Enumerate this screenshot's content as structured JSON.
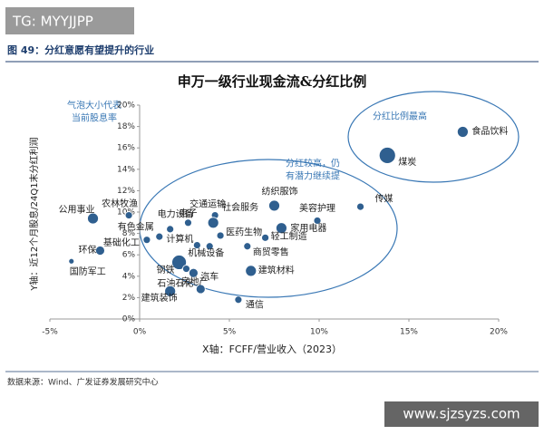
{
  "header": {
    "watermark": "TG: MYYJJPP",
    "figure_title": "图 49：分红意愿有望提升的行业"
  },
  "chart_data": {
    "type": "bubble",
    "title": "申万一级行业现金流&分红比例",
    "x_label": "X轴：FCFF/营业收入（2023）",
    "y_label": "Y轴：近12个月股息/24Q1末分红利润",
    "xlim": [
      -5,
      20
    ],
    "ylim": [
      0,
      20
    ],
    "xticks": [
      {
        "value": -5,
        "label": "-5%"
      },
      {
        "value": 0,
        "label": "0%"
      },
      {
        "value": 5,
        "label": "5%"
      },
      {
        "value": 10,
        "label": "10%"
      },
      {
        "value": 15,
        "label": "15%"
      },
      {
        "value": 20,
        "label": "20%"
      }
    ],
    "yticks": [
      {
        "value": 0,
        "label": "0%"
      },
      {
        "value": 2,
        "label": "2%"
      },
      {
        "value": 4,
        "label": "4%"
      },
      {
        "value": 6,
        "label": "6%"
      },
      {
        "value": 8,
        "label": "8%"
      },
      {
        "value": 10,
        "label": "10%"
      },
      {
        "value": 12,
        "label": "12%"
      },
      {
        "value": 14,
        "label": "14%"
      },
      {
        "value": 16,
        "label": "16%"
      },
      {
        "value": 18,
        "label": "18%"
      },
      {
        "value": 20,
        "label": "20%"
      }
    ],
    "color": "#2f5f8f",
    "point_labels": [
      "食品饮料",
      "煤炭",
      "传媒",
      "美容护理",
      "纺织服饰",
      "家用电器",
      "轻工制造",
      "商贸零售",
      "建筑材料",
      "通信",
      "社会服务",
      "交通运输",
      "电子",
      "医药生物",
      "计算机",
      "机械设备",
      "电力设备",
      "农林牧渔",
      "公用事业",
      "有色金属",
      "基础化工",
      "环保",
      "国防军工",
      "钢铁",
      "石油石化",
      "汽车",
      "建筑装饰",
      "房地产"
    ],
    "x": [
      18.0,
      13.8,
      12.3,
      9.9,
      7.5,
      7.9,
      7.0,
      6.0,
      6.2,
      5.5,
      4.2,
      4.1,
      2.7,
      4.5,
      3.2,
      3.9,
      1.7,
      -0.6,
      -2.6,
      1.1,
      0.4,
      -2.2,
      -3.8,
      2.2,
      3.0,
      3.4,
      1.7,
      2.6
    ],
    "values": [
      17.5,
      15.3,
      10.5,
      9.2,
      10.6,
      8.5,
      7.6,
      6.8,
      4.5,
      1.8,
      9.7,
      9.0,
      9.0,
      7.8,
      6.9,
      6.8,
      8.4,
      9.7,
      9.4,
      7.7,
      7.4,
      6.4,
      5.4,
      5.3,
      4.3,
      2.8,
      2.6,
      4.7
    ],
    "sizes": [
      4,
      7,
      2,
      2,
      4,
      4,
      2,
      2,
      4,
      2,
      2,
      4,
      2,
      2,
      2,
      2,
      2,
      2,
      4,
      2,
      2,
      3,
      1,
      6,
      3,
      3,
      4,
      2
    ],
    "annotations": [
      "气泡大小代表",
      "当前股息率",
      "分红比例最高",
      "分红较高，仍",
      "有潜力继续提"
    ]
  },
  "footer": {
    "source": "数据来源：Wind、广发证券发展研究中心",
    "site": "www.sjzsyzs.com"
  }
}
